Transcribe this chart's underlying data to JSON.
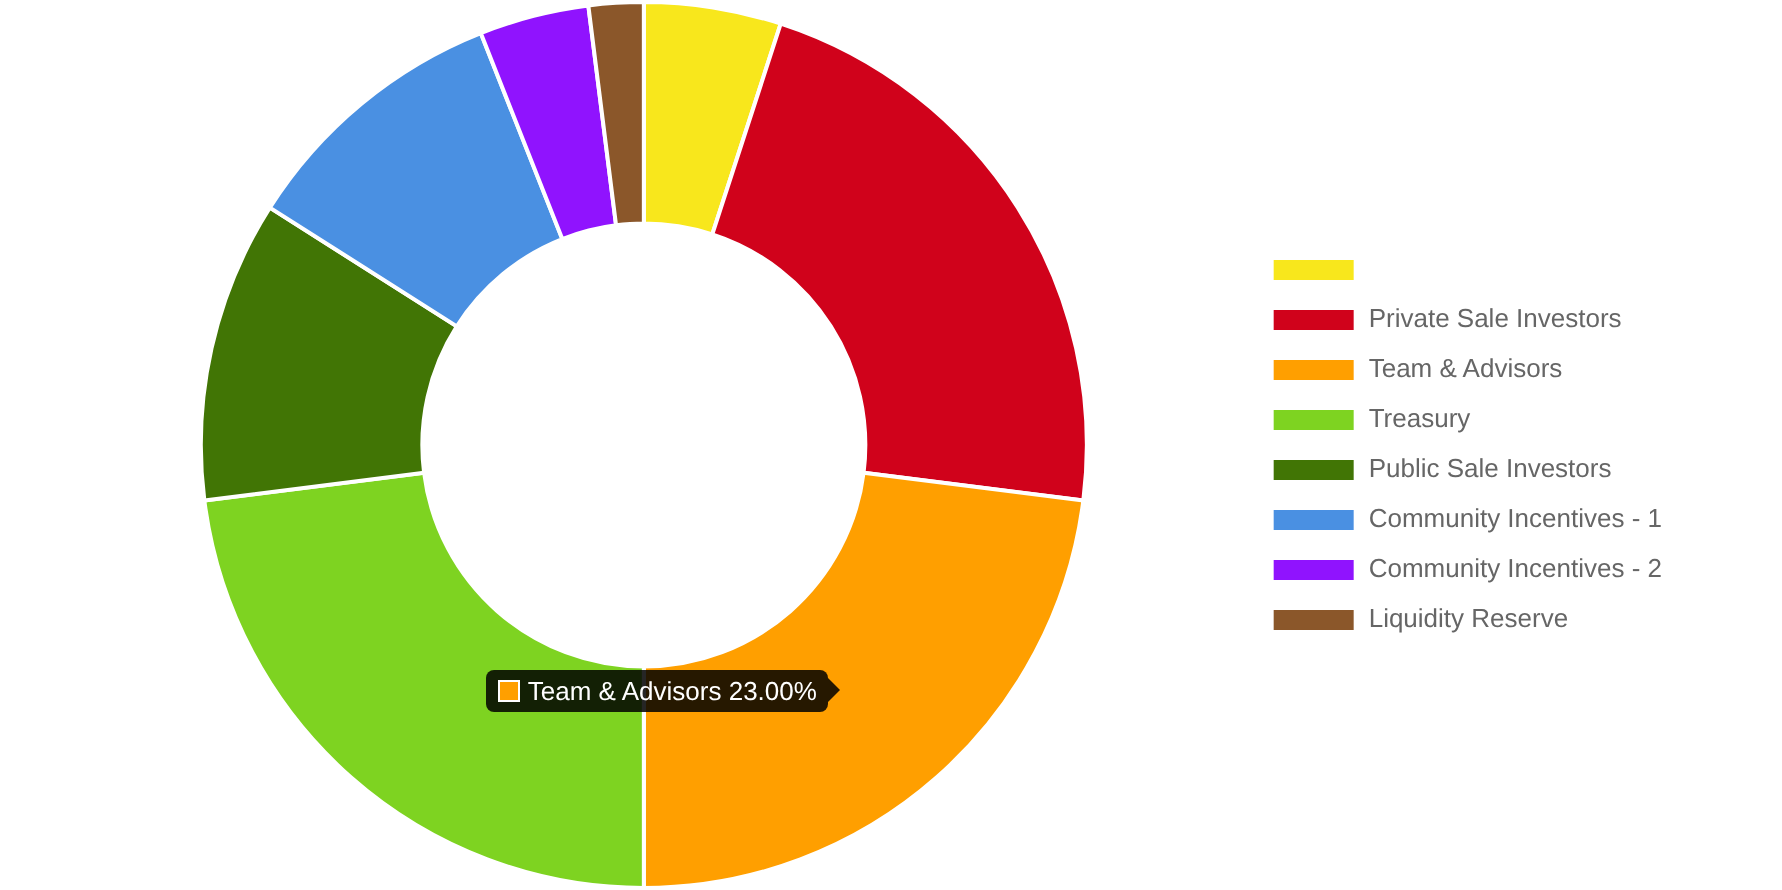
{
  "chart_data": {
    "type": "donut",
    "categories": [
      null,
      "Private Sale Investors",
      "Team & Advisors",
      "Treasury",
      "Public Sale Investors",
      "Community Incentives - 1",
      "Community Incentives - 2",
      "Liquidity Reserve"
    ],
    "values": [
      5,
      22,
      23,
      23,
      11,
      10,
      4,
      2
    ],
    "colors": [
      "#f8e71c",
      "#d0021b",
      "#ff9f00",
      "#7ed321",
      "#417505",
      "#4a90e2",
      "#9013fe",
      "#8b572a"
    ],
    "legend": "right",
    "annotations": [
      "Team & Advisors 23.00%"
    ]
  }
}
